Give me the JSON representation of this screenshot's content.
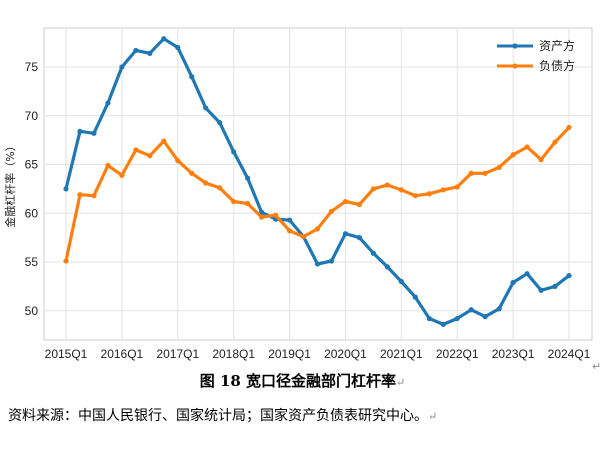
{
  "caption": {
    "text": "图 18 宽口径金融部门杠杆率",
    "mark": "↵"
  },
  "source": {
    "text": "资料来源：中国人民银行、国家统计局；国家资产负债表研究中心。",
    "mark": "↵"
  },
  "corner_mark": "↵",
  "chart_data": {
    "type": "line",
    "ylabel": "金融杠杆率（%）",
    "xlabel": "",
    "ylim": [
      47,
      79
    ],
    "yticks": [
      50,
      55,
      60,
      65,
      70,
      75
    ],
    "grid": true,
    "legend_position": "top-right",
    "x": [
      "2015Q1",
      "2015Q2",
      "2015Q3",
      "2015Q4",
      "2016Q1",
      "2016Q2",
      "2016Q3",
      "2016Q4",
      "2017Q1",
      "2017Q2",
      "2017Q3",
      "2017Q4",
      "2018Q1",
      "2018Q2",
      "2018Q3",
      "2018Q4",
      "2019Q1",
      "2019Q2",
      "2019Q3",
      "2019Q4",
      "2020Q1",
      "2020Q2",
      "2020Q3",
      "2020Q4",
      "2021Q1",
      "2021Q2",
      "2021Q3",
      "2021Q4",
      "2022Q1",
      "2022Q2",
      "2022Q3",
      "2022Q4",
      "2023Q1",
      "2023Q2",
      "2023Q3",
      "2023Q4",
      "2024Q1"
    ],
    "xticks": [
      "2015Q1",
      "2016Q1",
      "2017Q1",
      "2018Q1",
      "2019Q1",
      "2020Q1",
      "2021Q1",
      "2022Q1",
      "2023Q1",
      "2024Q1"
    ],
    "series": [
      {
        "name": "资产方",
        "color": "#1f77b4",
        "values": [
          62.5,
          68.4,
          68.2,
          71.3,
          75.0,
          76.7,
          76.4,
          77.9,
          77.0,
          74.0,
          70.8,
          69.3,
          66.3,
          63.6,
          60.1,
          59.4,
          59.3,
          57.6,
          54.8,
          55.1,
          57.9,
          57.5,
          55.9,
          54.5,
          53.0,
          51.4,
          49.2,
          48.6,
          49.2,
          50.1,
          49.4,
          50.2,
          52.9,
          53.8,
          52.1,
          52.5,
          53.6
        ]
      },
      {
        "name": "负债方",
        "color": "#ff7f0e",
        "values": [
          55.1,
          61.9,
          61.8,
          64.9,
          63.9,
          66.5,
          65.9,
          67.4,
          65.4,
          64.1,
          63.1,
          62.6,
          61.2,
          61.0,
          59.6,
          59.8,
          58.2,
          57.6,
          58.4,
          60.2,
          61.2,
          60.9,
          62.5,
          62.9,
          62.4,
          61.8,
          62.0,
          62.4,
          62.7,
          64.1,
          64.1,
          64.7,
          66.0,
          66.8,
          65.5,
          67.3,
          68.8
        ]
      }
    ]
  }
}
